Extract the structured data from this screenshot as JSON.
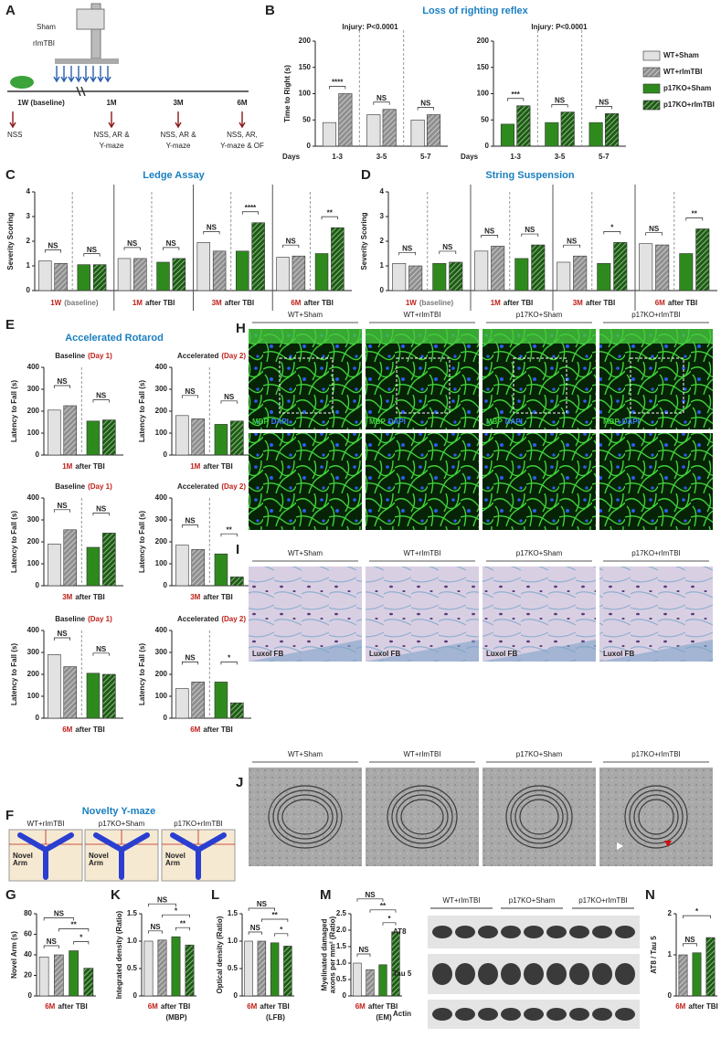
{
  "groups": [
    {
      "name": "WT+Sham",
      "color": "#e2e2e2",
      "hatch": false
    },
    {
      "name": "WT+rImTBI",
      "color": "#8f8f8f",
      "hatch": true
    },
    {
      "name": "p17KO+Sham",
      "color": "#2f8a1e",
      "hatch": false
    },
    {
      "name": "p17KO+rImTBI",
      "color": "#1c5e12",
      "hatch": true
    }
  ],
  "A": {
    "label": "A",
    "device": [
      "Sham",
      "rImTBI"
    ],
    "timepoints": [
      "1W (baseline)",
      "1M",
      "3M",
      "6M"
    ],
    "tests": [
      [
        "NSS"
      ],
      [
        "NSS, AR &",
        "Y-maze"
      ],
      [
        "NSS, AR &",
        "Y-maze"
      ],
      [
        "NSS, AR,",
        "Y-maze & OF"
      ]
    ]
  },
  "B": {
    "label": "B",
    "title": "Loss of righting reflex",
    "days_label": "Days",
    "charts": [
      {
        "annotation": "Injury: P<0.0001",
        "ylabel": "Time to Right (s)",
        "ylim": [
          0,
          200
        ],
        "yticks": [
          0,
          50,
          100,
          150,
          200
        ],
        "categories": [
          "1-3",
          "3-5",
          "5-7"
        ],
        "series": [
          {
            "values": [
              45,
              60,
              50
            ]
          },
          {
            "values": [
              100,
              70,
              60
            ]
          }
        ],
        "significance": [
          "****",
          "NS",
          "NS"
        ]
      },
      {
        "annotation": "Injury: P<0.0001",
        "ylim": [
          0,
          200
        ],
        "yticks": [
          0,
          50,
          100,
          150,
          200
        ],
        "categories": [
          "1-3",
          "3-5",
          "5-7"
        ],
        "series": [
          {
            "values": [
              42,
              45,
              45
            ]
          },
          {
            "values": [
              77,
              65,
              62
            ]
          }
        ],
        "significance": [
          "***",
          "NS",
          "NS"
        ]
      }
    ]
  },
  "C": {
    "label": "C",
    "title": "Ledge Assay",
    "ylabel": "Severity Scoring",
    "ylim": [
      0,
      4
    ],
    "yticks": [
      0,
      1,
      2,
      3,
      4
    ],
    "sections": [
      {
        "footer": [
          "1W",
          "(baseline)"
        ],
        "values": [
          1.2,
          1.1,
          1.05,
          1.05
        ],
        "significance": [
          "NS",
          "NS"
        ]
      },
      {
        "footer": [
          "1M",
          "after TBI"
        ],
        "values": [
          1.3,
          1.3,
          1.15,
          1.3
        ],
        "significance": [
          "NS",
          "NS"
        ]
      },
      {
        "footer": [
          "3M",
          "after TBI"
        ],
        "values": [
          1.95,
          1.6,
          1.6,
          2.75
        ],
        "significance": [
          "NS",
          "****"
        ]
      },
      {
        "footer": [
          "6M",
          "after TBI"
        ],
        "values": [
          1.35,
          1.4,
          1.5,
          2.55
        ],
        "significance": [
          "NS",
          "**"
        ]
      }
    ]
  },
  "D": {
    "label": "D",
    "title": "String Suspension",
    "ylabel": "Severity Scoring",
    "ylim": [
      0,
      4
    ],
    "yticks": [
      0,
      1,
      2,
      3,
      4
    ],
    "sections": [
      {
        "footer": [
          "1W",
          "(baseline)"
        ],
        "values": [
          1.1,
          1.0,
          1.1,
          1.15
        ],
        "significance": [
          "NS",
          "NS"
        ]
      },
      {
        "footer": [
          "1M",
          "after TBI"
        ],
        "values": [
          1.6,
          1.8,
          1.3,
          1.85
        ],
        "significance": [
          "NS",
          "NS"
        ]
      },
      {
        "footer": [
          "3M",
          "after TBI"
        ],
        "values": [
          1.15,
          1.4,
          1.1,
          1.95
        ],
        "significance": [
          "NS",
          "*"
        ]
      },
      {
        "footer": [
          "6M",
          "after TBI"
        ],
        "values": [
          1.9,
          1.85,
          1.5,
          2.5
        ],
        "significance": [
          "NS",
          "**"
        ]
      }
    ]
  },
  "E": {
    "label": "E",
    "title": "Accelerated Rotarod",
    "ylabel": "Latency to Fall (s)",
    "ylim": [
      0,
      400
    ],
    "yticks": [
      0,
      100,
      200,
      300,
      400
    ],
    "charts": [
      {
        "title": [
          "Baseline",
          "(Day 1)"
        ],
        "footer": [
          "1M",
          "after TBI"
        ],
        "values": [
          205,
          225,
          155,
          160
        ],
        "significance": [
          "NS",
          "NS"
        ]
      },
      {
        "title": [
          "Accelerated",
          "(Day 2)"
        ],
        "footer": [
          "1M",
          "after TBI"
        ],
        "values": [
          180,
          165,
          140,
          155
        ],
        "significance": [
          "NS",
          "NS"
        ]
      },
      {
        "title": [
          "Baseline",
          "(Day 1)"
        ],
        "footer": [
          "3M",
          "after TBI"
        ],
        "values": [
          190,
          255,
          175,
          240
        ],
        "significance": [
          "NS",
          "NS"
        ]
      },
      {
        "title": [
          "Accelerated",
          "(Day 2)"
        ],
        "footer": [
          "3M",
          "after TBI"
        ],
        "values": [
          185,
          165,
          145,
          40
        ],
        "significance": [
          "NS",
          "**"
        ]
      },
      {
        "title": [
          "Baseline",
          "(Day 1)"
        ],
        "footer": [
          "6M",
          "after TBI"
        ],
        "values": [
          290,
          235,
          205,
          200
        ],
        "significance": [
          "NS",
          "NS"
        ]
      },
      {
        "title": [
          "Accelerated",
          "(Day 2)"
        ],
        "footer": [
          "6M",
          "after TBI"
        ],
        "values": [
          135,
          165,
          165,
          70
        ],
        "significance": [
          "NS",
          "*"
        ]
      }
    ]
  },
  "F": {
    "label": "F",
    "title": "Novelty Y-maze",
    "arm": [
      "Novel",
      "Arm"
    ]
  },
  "G": {
    "label": "G",
    "ylabel": [
      "Novel Arm (s)"
    ],
    "ylim": [
      0,
      80
    ],
    "yticks": [
      0,
      20,
      40,
      60,
      80
    ],
    "values": [
      38,
      40,
      44,
      27
    ],
    "significance": [
      "NS",
      "*",
      "**",
      "NS"
    ],
    "footer": [
      "6M",
      "after TBI"
    ]
  },
  "H": {
    "label": "H",
    "stain": [
      "MBP",
      "DAPI"
    ]
  },
  "I": {
    "label": "I",
    "stain": "Luxol FB"
  },
  "J": {
    "label": "J"
  },
  "K": {
    "label": "K",
    "ylabel": [
      "Integrated density (Ratio)"
    ],
    "ylim": [
      0,
      1.5
    ],
    "yticks": [
      0,
      0.5,
      {
        "value": 1,
        "label": "1.0"
      },
      1.5
    ],
    "values": [
      1.0,
      1.02,
      1.08,
      0.93
    ],
    "significance": [
      "NS",
      "**",
      "*",
      "NS"
    ],
    "footer": [
      "6M",
      "after TBI"
    ],
    "subfooter": "(MBP)"
  },
  "L": {
    "label": "L",
    "ylabel": [
      "Optical density (Ratio)"
    ],
    "ylim": [
      0,
      1.5
    ],
    "yticks": [
      0,
      0.5,
      {
        "value": 1,
        "label": "1.0"
      },
      1.5
    ],
    "values": [
      1.0,
      1.0,
      0.97,
      0.91
    ],
    "significance": [
      "NS",
      "*",
      "**",
      "NS"
    ],
    "footer": [
      "6M",
      "after TBI"
    ],
    "subfooter": "(LFB)"
  },
  "M": {
    "label": "M",
    "ylabel": [
      "Myelinated damaged",
      "axons per mm² (Ratio)"
    ],
    "ylim": [
      0,
      2.5
    ],
    "yticks": [
      0,
      0.5,
      {
        "value": 1,
        "label": "1.0"
      },
      1.5,
      {
        "value": 2,
        "label": "2.0"
      },
      2.5
    ],
    "values": [
      1.0,
      0.8,
      0.95,
      1.95
    ],
    "significance": [
      "NS",
      "*",
      "**",
      "NS"
    ],
    "footer": [
      "6M",
      "after TBI"
    ],
    "subfooter": "(EM)"
  },
  "N": {
    "label": "N",
    "blot_rows": [
      "AT8",
      "Tau 5",
      "Actin"
    ],
    "ylabel": [
      "AT8 / Tau 5"
    ],
    "ylim": [
      0,
      2
    ],
    "yticks": [
      0,
      1,
      2
    ],
    "values": [
      1.0,
      1.05,
      1.42
    ],
    "significance": [
      "NS",
      "*"
    ],
    "footer": [
      "6M",
      "after TBI"
    ]
  }
}
